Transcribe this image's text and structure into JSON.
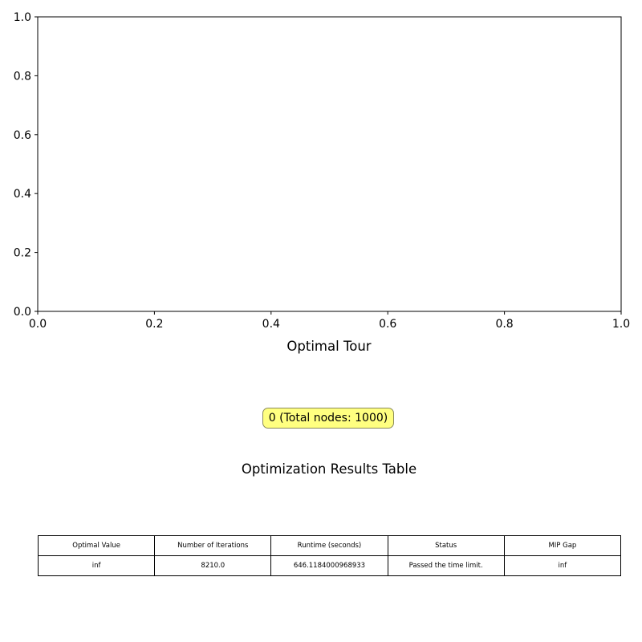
{
  "chart_data": {
    "type": "line",
    "title": "Optimal Tour",
    "xlabel": "",
    "ylabel": "",
    "xlim": [
      0,
      1
    ],
    "ylim": [
      0,
      1
    ],
    "xticks": [
      "0.0",
      "0.2",
      "0.4",
      "0.6",
      "0.8",
      "1.0"
    ],
    "yticks": [
      "0.0",
      "0.2",
      "0.4",
      "0.6",
      "0.8",
      "1.0"
    ],
    "grid": false,
    "series": []
  },
  "callout": {
    "text": "0 (Total nodes: 1000)",
    "color": "#ffff80"
  },
  "results_table": {
    "title": "Optimization Results Table",
    "headers": [
      "Optimal Value",
      "Number of Iterations",
      "Runtime (seconds)",
      "Status",
      "MIP Gap"
    ],
    "row": [
      "inf",
      "8210.0",
      "646.1184000968933",
      "Passed the time limit.",
      "inf"
    ]
  }
}
